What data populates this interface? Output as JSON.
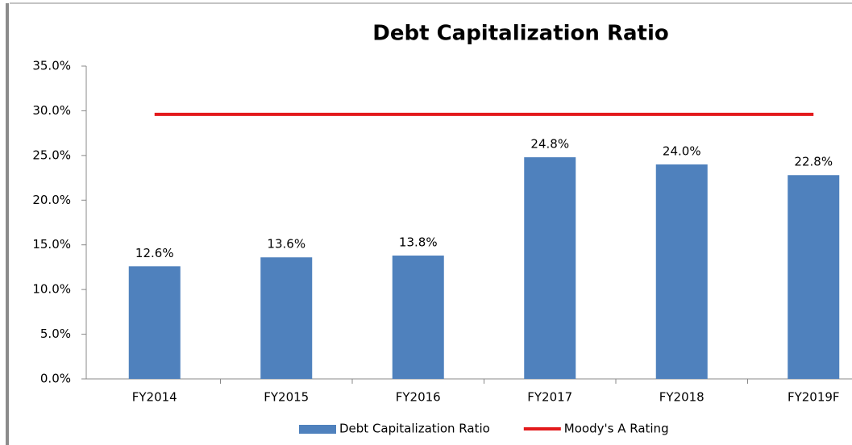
{
  "chart_data": {
    "type": "bar",
    "title": "Debt Capitalization Ratio",
    "categories": [
      "FY2014",
      "FY2015",
      "FY2016",
      "FY2017",
      "FY2018",
      "FY2019F"
    ],
    "series": [
      {
        "name": "Debt Capitalization Ratio",
        "type": "bar",
        "color": "#4f81bd",
        "values": [
          12.6,
          13.6,
          13.8,
          24.8,
          24.0,
          22.8
        ],
        "value_labels": [
          "12.6%",
          "13.6%",
          "13.8%",
          "24.8%",
          "24.0%",
          "22.8%"
        ]
      },
      {
        "name": "Moody's A Rating",
        "type": "line",
        "color": "#e31a1c",
        "values": [
          29.6,
          29.6,
          29.6,
          29.6,
          29.6,
          29.6
        ]
      }
    ],
    "ylim": [
      0,
      35
    ],
    "yticks": [
      {
        "value": 0,
        "label": "0.0%"
      },
      {
        "value": 5,
        "label": "5.0%"
      },
      {
        "value": 10,
        "label": "10.0%"
      },
      {
        "value": 15,
        "label": "15.0%"
      },
      {
        "value": 20,
        "label": "20.0%"
      },
      {
        "value": 25,
        "label": "25.0%"
      },
      {
        "value": 30,
        "label": "30.0%"
      },
      {
        "value": 35,
        "label": "35.0%"
      }
    ],
    "grid": false,
    "legend": "bottom"
  }
}
